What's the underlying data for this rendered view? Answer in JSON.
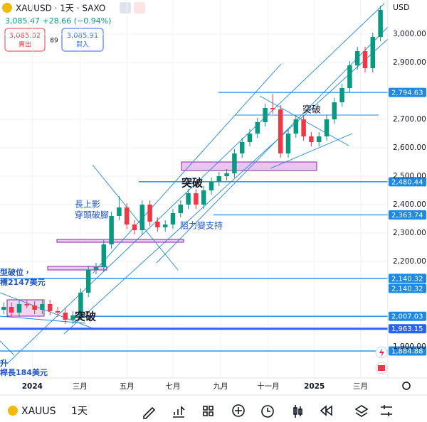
{
  "header": {
    "symbol": "XAUUSD · 1天 · SAXO",
    "quote": "3,085.47 +28.66 (+0.94%)",
    "sell_price": "3,085.02",
    "sell_label": "賣出",
    "spread": "89",
    "buy_price": "3,085.91",
    "buy_label": "買入"
  },
  "chart_data": {
    "type": "candlestick",
    "currency": "USD",
    "open": [
      2030,
      2040,
      2020,
      2050,
      2045,
      2030,
      2050,
      2025,
      2020,
      1995,
      2010,
      2090,
      2170,
      2180,
      2260,
      2360,
      2390,
      2330,
      2310,
      2400,
      2340,
      2320,
      2330,
      2370,
      2400,
      2440,
      2400,
      2450,
      2480,
      2500,
      2510,
      2580,
      2620,
      2650,
      2690,
      2740,
      2735,
      2580,
      2650,
      2700,
      2640,
      2620,
      2640,
      2700,
      2760,
      2810,
      2890,
      2940,
      2880,
      2990
    ],
    "high": [
      2055,
      2055,
      2065,
      2065,
      2060,
      2065,
      2065,
      2040,
      2035,
      2025,
      2105,
      2185,
      2195,
      2275,
      2375,
      2430,
      2405,
      2345,
      2415,
      2415,
      2355,
      2345,
      2385,
      2415,
      2455,
      2455,
      2465,
      2495,
      2515,
      2525,
      2595,
      2635,
      2665,
      2705,
      2755,
      2790,
      2750,
      2665,
      2715,
      2715,
      2655,
      2655,
      2715,
      2775,
      2825,
      2905,
      2955,
      2955,
      3005,
      3100
    ],
    "low": [
      2015,
      2005,
      2005,
      2035,
      2015,
      2015,
      2010,
      2005,
      1980,
      1980,
      1995,
      2075,
      2155,
      2165,
      2245,
      2345,
      2315,
      2295,
      2295,
      2325,
      2305,
      2305,
      2315,
      2355,
      2385,
      2385,
      2385,
      2435,
      2465,
      2485,
      2495,
      2565,
      2605,
      2635,
      2675,
      2720,
      2565,
      2565,
      2635,
      2625,
      2605,
      2605,
      2625,
      2685,
      2745,
      2795,
      2875,
      2865,
      2865,
      2975
    ],
    "close": [
      2040,
      2020,
      2050,
      2045,
      2030,
      2050,
      2025,
      2020,
      1995,
      2010,
      2090,
      2170,
      2180,
      2260,
      2360,
      2390,
      2330,
      2310,
      2400,
      2340,
      2320,
      2330,
      2370,
      2400,
      2440,
      2400,
      2450,
      2480,
      2500,
      2510,
      2580,
      2620,
      2650,
      2690,
      2740,
      2735,
      2580,
      2650,
      2700,
      2640,
      2620,
      2640,
      2700,
      2760,
      2810,
      2890,
      2940,
      2880,
      2990,
      3085
    ],
    "up_color": "#089981",
    "down_color": "#f23645",
    "xlim": [
      0,
      50
    ],
    "xticks": [
      {
        "value": 4.2,
        "label": "2024"
      },
      {
        "value": 10.4,
        "label": "三月"
      },
      {
        "value": 16.5,
        "label": "五月"
      },
      {
        "value": 22.5,
        "label": "七月"
      },
      {
        "value": 28.7,
        "label": "九月"
      },
      {
        "value": 34.9,
        "label": "十一月"
      },
      {
        "value": 40.9,
        "label": "2025"
      },
      {
        "value": 46.9,
        "label": "三月"
      }
    ],
    "ylim": [
      1795,
      3070
    ],
    "yticks": [
      {
        "value": 1900,
        "label": "1,900.00"
      },
      {
        "value": 2200,
        "label": "2,200.00"
      },
      {
        "value": 2300,
        "label": "2,300.00"
      },
      {
        "value": 2400,
        "label": "2,400.00"
      },
      {
        "value": 2500,
        "label": "2,500.00"
      },
      {
        "value": 2600,
        "label": "2,600.00"
      },
      {
        "value": 2700,
        "label": "2,700.00"
      },
      {
        "value": 2900,
        "label": "2,900.00"
      },
      {
        "value": 3000,
        "label": "3,000.00"
      }
    ],
    "grid": true,
    "levels": [
      {
        "value": 2794.63,
        "label": "2,794.63",
        "color": "#1e88e5"
      },
      {
        "value": 2480.44,
        "label": "2,480.44",
        "color": "#1e88e5"
      },
      {
        "value": 2363.74,
        "label": "2,363.74",
        "color": "#1e88e5"
      },
      {
        "value": 2140.32,
        "label": "2,140.32",
        "color": "#1e88e5"
      },
      {
        "value": 2140.32,
        "label": "2,140.32",
        "color": "#1e88e5"
      },
      {
        "value": 2007.03,
        "label": "2,007.03",
        "color": "#1e88e5"
      },
      {
        "value": 1963.15,
        "label": "1,963.15",
        "color": "#2962ff"
      },
      {
        "value": 1884.88,
        "label": "1,884.88",
        "color": "#1e88e5"
      }
    ],
    "annotations": [
      "突破",
      "突破",
      "長上影",
      "穿頭破腳",
      "阻力變支持",
      "突破",
      "型破位，",
      "標2147美元",
      "升",
      "桿長184美元"
    ]
  },
  "toolbar": {
    "symbol": "XAUUS",
    "interval": "1天"
  }
}
